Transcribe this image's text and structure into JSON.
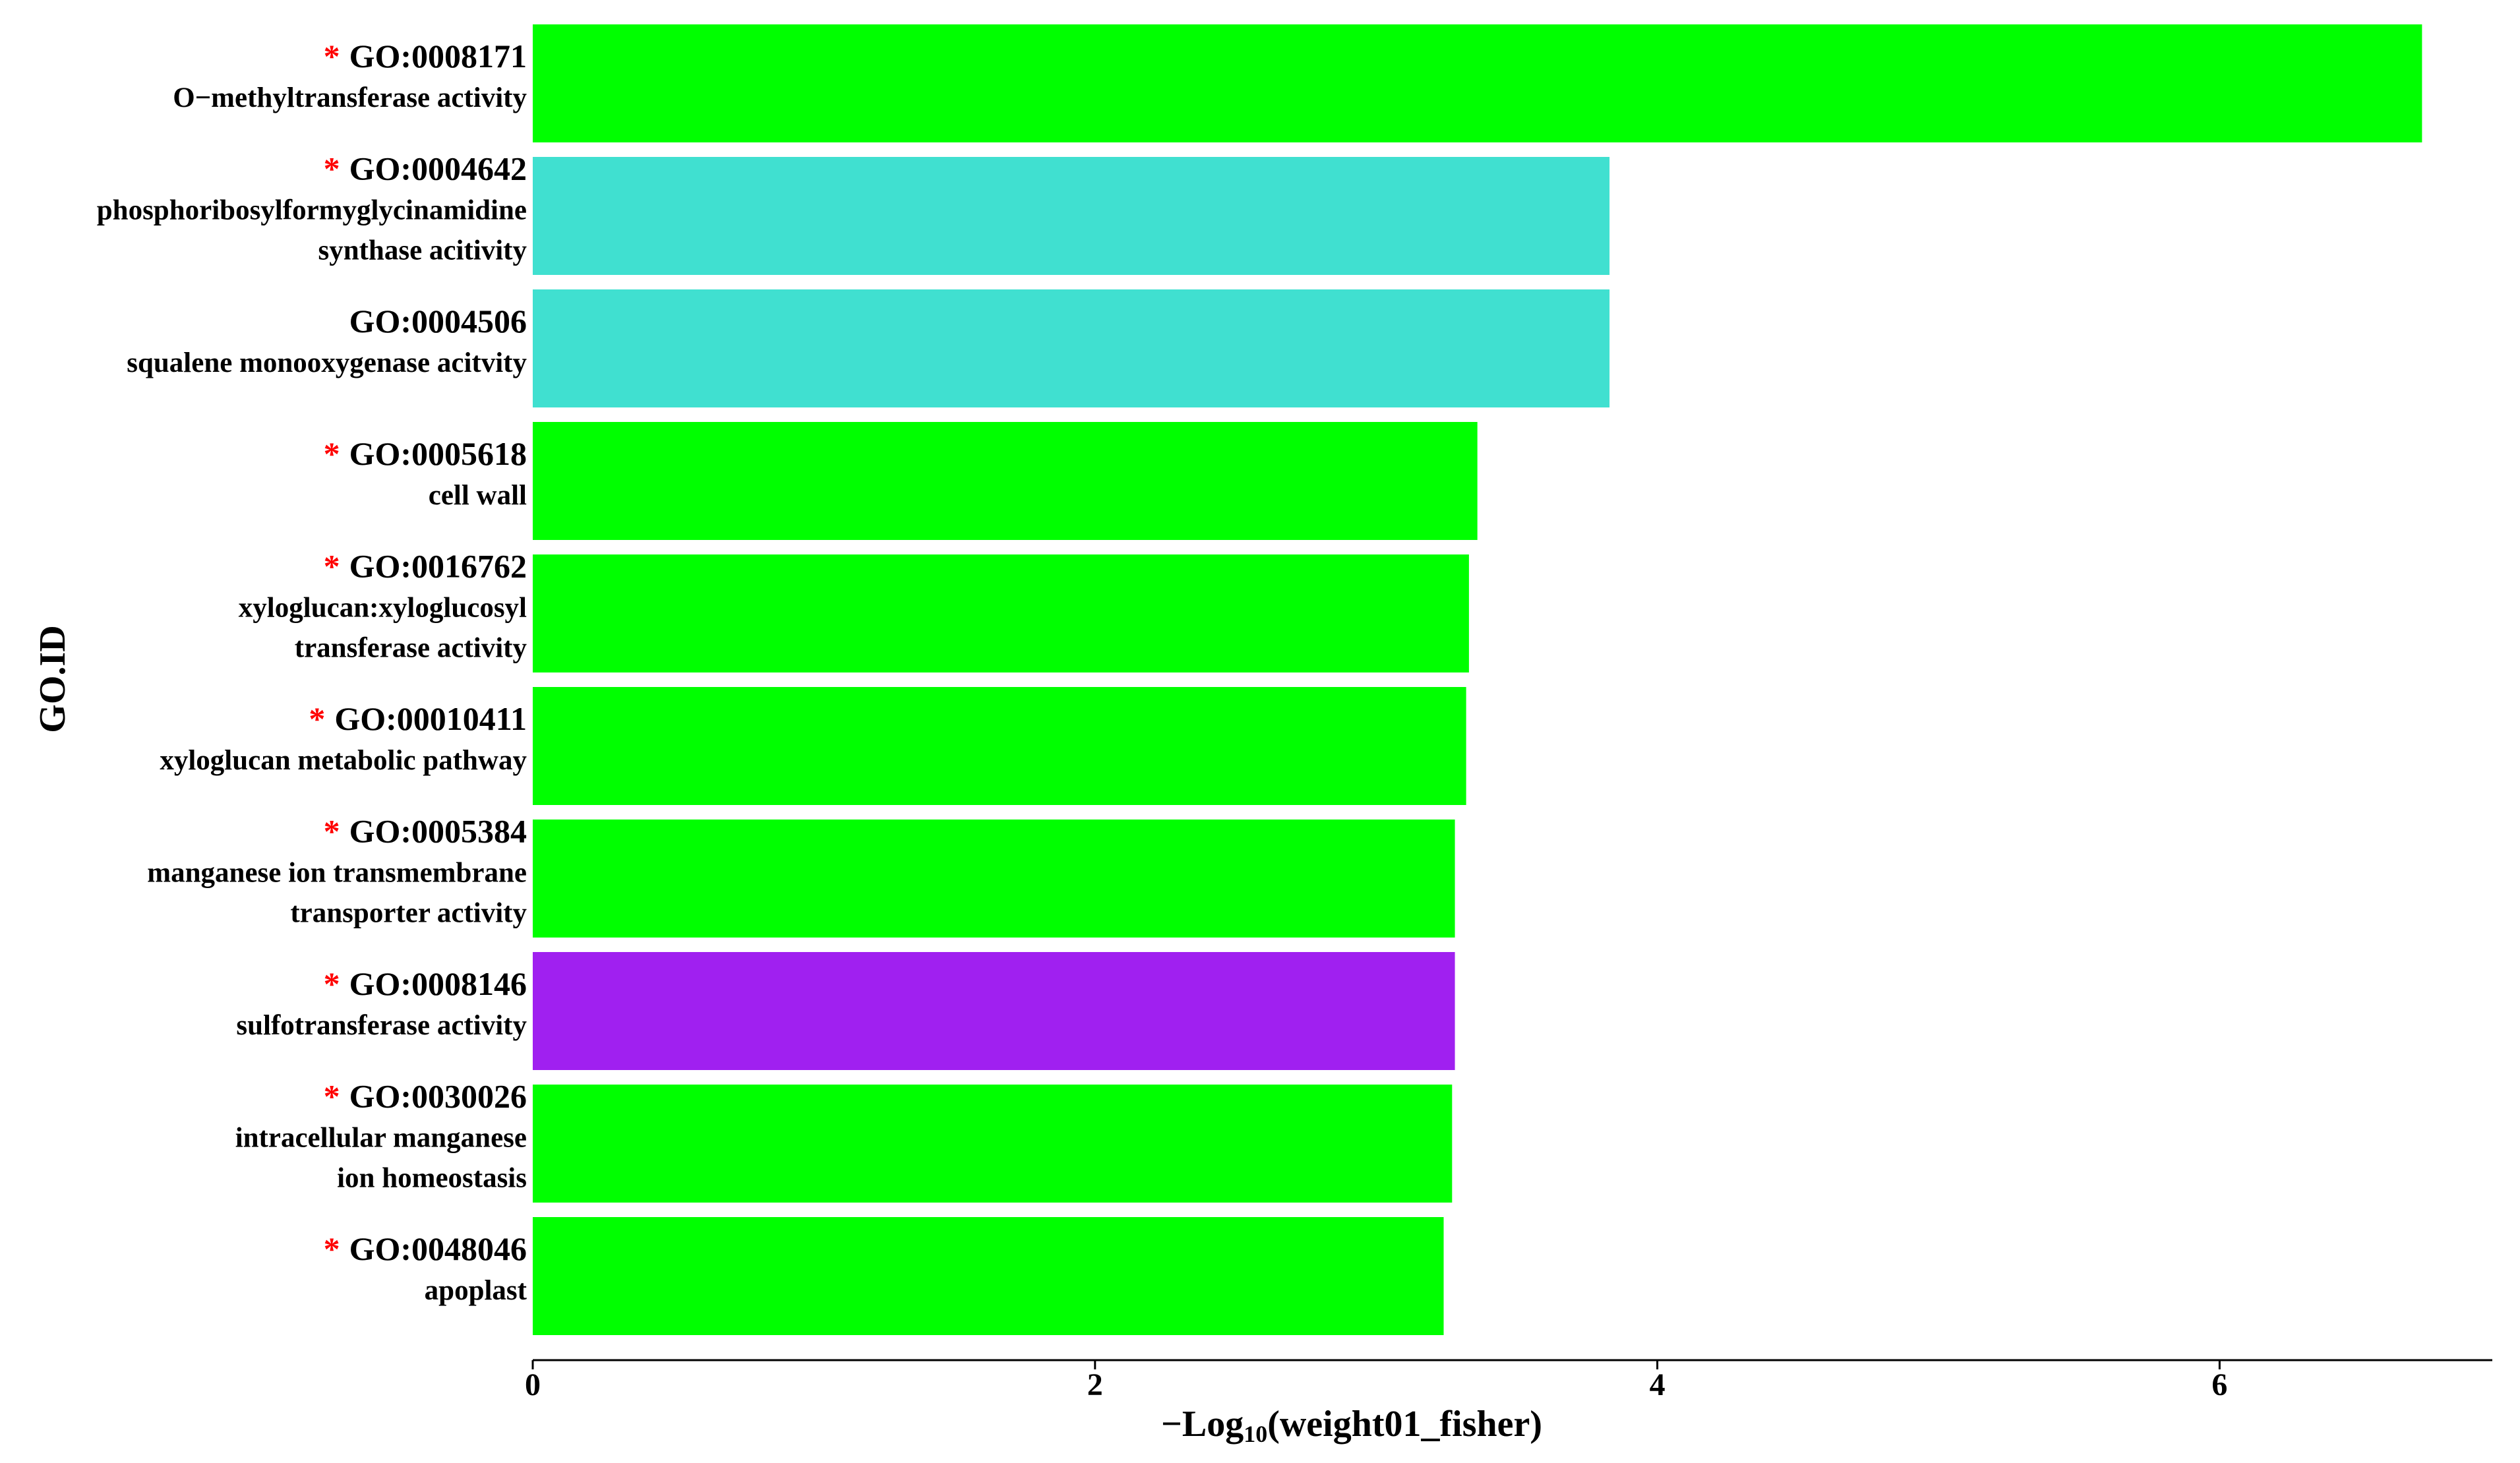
{
  "chart_data": {
    "type": "barh",
    "categories": [
      "GO:0008171",
      "GO:0004642",
      "GO:0004506",
      "GO:0005618",
      "GO:0016762",
      "GO:00010411",
      "GO:0005384",
      "GO:0008146",
      "GO:0030026",
      "GO:0048046"
    ],
    "descriptions": [
      [
        "O−methyltransferase activity"
      ],
      [
        "phosphoribosylformyglycinamidine",
        "synthase acitivity"
      ],
      [
        "squalene monooxygenase acitvity"
      ],
      [
        "cell wall"
      ],
      [
        "xyloglucan:xyloglucosyl",
        "transferase activity"
      ],
      [
        "xyloglucan metabolic pathway"
      ],
      [
        "manganese ion transmembrane",
        "transporter activity"
      ],
      [
        "sulfotransferase activity"
      ],
      [
        "intracellular manganese",
        "ion homeostasis"
      ],
      [
        "apoplast"
      ]
    ],
    "significance_marker": "*",
    "significant": [
      true,
      true,
      false,
      true,
      true,
      true,
      true,
      true,
      true,
      true
    ],
    "values": [
      6.72,
      3.83,
      3.83,
      3.36,
      3.33,
      3.32,
      3.28,
      3.28,
      3.27,
      3.24
    ],
    "colors": [
      "#00ff00",
      "#40e0d0",
      "#40e0d0",
      "#00ff00",
      "#00ff00",
      "#00ff00",
      "#00ff00",
      "#a020f0",
      "#00ff00",
      "#00ff00"
    ],
    "marker_color": "#ff0000",
    "xlim": [
      0,
      6.97
    ],
    "xticks": [
      0,
      2,
      4,
      6
    ],
    "xlabel": {
      "main": "−Log",
      "sub": "10",
      "rest": "(weight01_fisher)"
    },
    "ylabel": "GO.ID"
  }
}
